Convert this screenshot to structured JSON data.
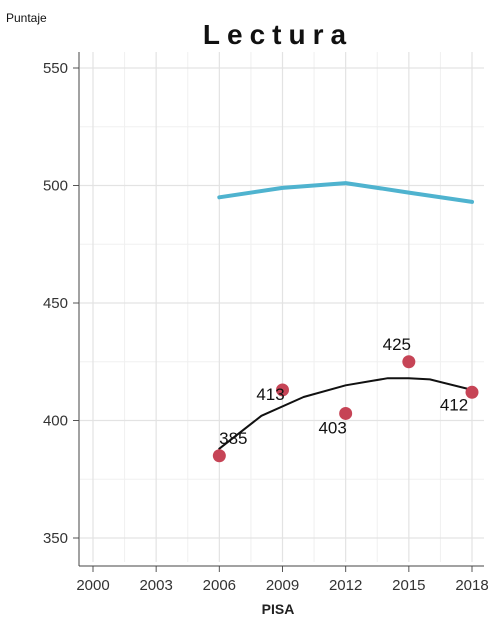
{
  "chart_data": {
    "type": "line",
    "title": "Lectura",
    "ylabel": "Puntaje",
    "xlabel": "PISA",
    "x_ticks": [
      2000,
      2003,
      2006,
      2009,
      2012,
      2015,
      2018
    ],
    "y_ticks": [
      350,
      400,
      450,
      500,
      550
    ],
    "xlim": [
      2000,
      2018
    ],
    "ylim": [
      345,
      555
    ],
    "grid": true,
    "series": [
      {
        "kind": "line",
        "color": "#4fb3cf",
        "x": [
          2006,
          2009,
          2012,
          2015,
          2018
        ],
        "y": [
          495,
          499,
          501,
          497,
          493
        ]
      },
      {
        "kind": "points",
        "color": "#c64456",
        "x": [
          2006,
          2009,
          2012,
          2015,
          2018
        ],
        "y": [
          385,
          413,
          403,
          425,
          412
        ],
        "labels": [
          "385",
          "413",
          "403",
          "425",
          "412"
        ]
      },
      {
        "kind": "trend",
        "color": "#111111",
        "x": [
          2006,
          2008,
          2010,
          2012,
          2014,
          2015,
          2016,
          2018
        ],
        "y": [
          388,
          402,
          410,
          415,
          418,
          418,
          417.5,
          413
        ]
      }
    ]
  }
}
